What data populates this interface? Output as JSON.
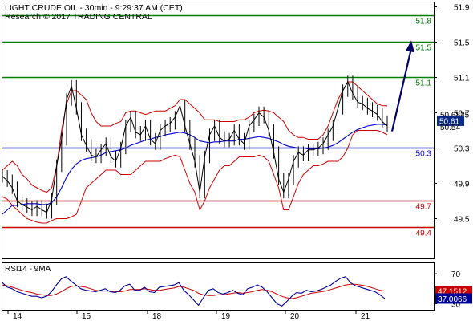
{
  "header": {
    "title": "LIGHT CRUDE OIL - 30min - 9:29:37 AM (CET)",
    "credit": "Research © 2017 TRADING CENTRAL"
  },
  "colors": {
    "background": "#ffffff",
    "frame": "#000000",
    "price": "#000000",
    "bollinger": "#cc0000",
    "moving_average": "#0000cc",
    "resistance": "#008000",
    "pivot": "#0000cc",
    "support": "#cc0000",
    "rsi": "#000099",
    "rsi_signal": "#cc0000",
    "arrow": "#000066",
    "tag_bg": "#0a2a8a",
    "tag_text": "#ffffff"
  },
  "chart_data": [
    {
      "type": "line",
      "panel": "price",
      "x_ticks": [
        "14",
        "15",
        "18",
        "19",
        "20",
        "21"
      ],
      "y_ticks": [
        "51.9",
        "51.5",
        "51.1",
        "50.7",
        "50.3",
        "49.9",
        "49.5"
      ],
      "ylim": [
        49.05,
        51.95
      ],
      "levels": [
        {
          "label": "51.8",
          "value": 51.8,
          "kind": "resistance"
        },
        {
          "label": "51.5",
          "value": 51.5,
          "kind": "resistance"
        },
        {
          "label": "51.1",
          "value": 51.1,
          "kind": "resistance"
        },
        {
          "label": "50.3",
          "value": 50.3,
          "kind": "pivot"
        },
        {
          "label": "49.7",
          "value": 49.7,
          "kind": "support"
        },
        {
          "label": "49.4",
          "value": 49.4,
          "kind": "support"
        }
      ],
      "last_values": [
        {
          "label": "50.6825",
          "value": 50.6825,
          "boxed": false
        },
        {
          "label": "50.61",
          "value": 50.61,
          "boxed": true
        },
        {
          "label": "50.54",
          "value": 50.54,
          "boxed": false
        }
      ],
      "forecast_arrow": {
        "from": 50.49,
        "to": 51.52
      },
      "series": {
        "price": [
          49.98,
          49.93,
          49.85,
          49.7,
          49.66,
          49.63,
          49.6,
          49.64,
          49.6,
          49.57,
          49.72,
          50.1,
          50.4,
          50.85,
          51.0,
          50.75,
          50.45,
          50.33,
          50.22,
          50.2,
          50.28,
          50.35,
          50.2,
          50.15,
          50.3,
          50.55,
          50.65,
          50.48,
          50.45,
          50.55,
          50.4,
          50.35,
          50.5,
          50.55,
          50.58,
          50.65,
          50.78,
          50.55,
          50.35,
          50.15,
          49.8,
          50.2,
          50.45,
          50.55,
          50.42,
          50.38,
          50.4,
          50.5,
          50.4,
          50.35,
          50.55,
          50.62,
          50.7,
          50.65,
          50.5,
          50.25,
          49.95,
          49.8,
          49.95,
          50.15,
          50.25,
          50.22,
          50.28,
          50.28,
          50.3,
          50.35,
          50.45,
          50.55,
          50.75,
          50.95,
          51.05,
          50.92,
          50.82,
          50.8,
          50.75,
          50.72,
          50.68,
          50.6,
          50.55
        ],
        "bollinger_upper": [
          50.05,
          50.1,
          50.15,
          50.1,
          50.0,
          49.95,
          49.88,
          49.85,
          49.82,
          49.8,
          49.85,
          50.1,
          50.5,
          50.8,
          50.95,
          50.95,
          50.9,
          50.85,
          50.7,
          50.6,
          50.55,
          50.55,
          50.55,
          50.58,
          50.6,
          50.7,
          50.72,
          50.72,
          50.7,
          50.68,
          50.7,
          50.72,
          50.72,
          50.72,
          50.75,
          50.78,
          50.85,
          50.85,
          50.8,
          50.75,
          50.7,
          50.62,
          50.62,
          50.62,
          50.6,
          50.6,
          50.6,
          50.6,
          50.62,
          50.62,
          50.65,
          50.7,
          50.72,
          50.73,
          50.72,
          50.7,
          50.65,
          50.6,
          50.5,
          50.45,
          50.42,
          50.42,
          50.4,
          50.4,
          50.4,
          50.45,
          50.55,
          50.7,
          50.85,
          50.95,
          51.05,
          51.05,
          51.0,
          50.95,
          50.9,
          50.85,
          50.8,
          50.78,
          50.78
        ],
        "bollinger_lower": [
          49.75,
          49.72,
          49.65,
          49.6,
          49.55,
          49.5,
          49.48,
          49.46,
          49.45,
          49.45,
          49.48,
          49.5,
          49.5,
          49.5,
          49.52,
          49.55,
          49.7,
          49.85,
          49.9,
          49.95,
          50.0,
          50.05,
          50.05,
          50.05,
          50.0,
          50.0,
          50.0,
          50.05,
          50.1,
          50.15,
          50.15,
          50.15,
          50.15,
          50.18,
          50.2,
          50.22,
          50.2,
          50.05,
          49.9,
          49.8,
          49.6,
          49.7,
          49.85,
          49.95,
          50.05,
          50.1,
          50.1,
          50.15,
          50.2,
          50.2,
          50.2,
          50.2,
          50.22,
          50.2,
          50.15,
          50.0,
          49.85,
          49.6,
          49.6,
          49.75,
          49.9,
          50.0,
          50.05,
          50.1,
          50.1,
          50.12,
          50.15,
          50.15,
          50.15,
          50.2,
          50.3,
          50.45,
          50.5,
          50.5,
          50.5,
          50.5,
          50.5,
          50.48,
          50.45
        ],
        "moving_average": [
          49.55,
          49.6,
          49.65,
          49.65,
          49.66,
          49.67,
          49.67,
          49.67,
          49.66,
          49.66,
          49.68,
          49.75,
          49.85,
          49.97,
          50.06,
          50.12,
          50.16,
          50.18,
          50.19,
          50.2,
          50.22,
          50.25,
          50.26,
          50.27,
          50.28,
          50.3,
          50.33,
          50.35,
          50.37,
          50.39,
          50.4,
          50.42,
          50.43,
          50.45,
          50.46,
          50.47,
          50.48,
          50.47,
          50.45,
          50.42,
          50.38,
          50.37,
          50.36,
          50.37,
          50.37,
          50.38,
          50.38,
          50.38,
          50.4,
          50.4,
          50.41,
          50.42,
          50.43,
          50.42,
          50.41,
          50.39,
          50.37,
          50.34,
          50.32,
          50.31,
          50.3,
          50.3,
          50.29,
          50.29,
          50.29,
          50.3,
          50.31,
          50.33,
          50.36,
          50.4,
          50.44,
          50.48,
          50.51,
          50.53,
          50.55,
          50.56,
          50.57,
          50.57,
          50.56
        ]
      }
    },
    {
      "type": "line",
      "panel": "rsi",
      "title": "RSI14 - 9MA",
      "y_ticks": [
        "70",
        "30"
      ],
      "ylim": [
        22,
        84
      ],
      "last_values": [
        {
          "label": "47.1512",
          "value": 47.1512
        },
        {
          "label": "37.0066",
          "value": 37.0066
        }
      ],
      "series": {
        "rsi": [
          58,
          52,
          50,
          46,
          44,
          42,
          40,
          40,
          38,
          40,
          46,
          55,
          63,
          66,
          60,
          55,
          50,
          48,
          47,
          46,
          48,
          50,
          46,
          45,
          48,
          54,
          56,
          48,
          48,
          52,
          46,
          45,
          52,
          53,
          54,
          55,
          58,
          48,
          42,
          35,
          28,
          38,
          48,
          50,
          45,
          43,
          45,
          48,
          44,
          42,
          50,
          52,
          55,
          52,
          46,
          38,
          30,
          27,
          33,
          40,
          45,
          44,
          48,
          46,
          47,
          49,
          52,
          55,
          60,
          64,
          66,
          58,
          54,
          52,
          50,
          48,
          46,
          42,
          37
        ],
        "rsi_ma": [
          55,
          54,
          52,
          50,
          48,
          46,
          45,
          43,
          42,
          41,
          41,
          43,
          46,
          50,
          53,
          54,
          53,
          52,
          50,
          48,
          47,
          47,
          47,
          46,
          46,
          47,
          49,
          49,
          49,
          50,
          49,
          48,
          48,
          49,
          50,
          51,
          53,
          52,
          50,
          48,
          44,
          42,
          41,
          41,
          42,
          42,
          43,
          44,
          45,
          44,
          45,
          46,
          48,
          49,
          48,
          46,
          43,
          40,
          38,
          37,
          38,
          40,
          42,
          44,
          45,
          46,
          47,
          49,
          51,
          53,
          55,
          56,
          56,
          55,
          54,
          52,
          50,
          48,
          47
        ]
      }
    }
  ]
}
